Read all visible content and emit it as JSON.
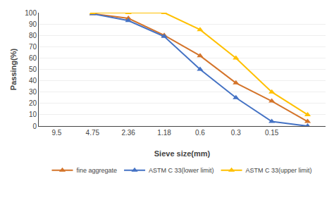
{
  "chart_data": {
    "type": "line",
    "xlabel": "Sieve size(mm)",
    "ylabel": "Passing(%)",
    "categories": [
      "9.5",
      "4.75",
      "2.36",
      "1.18",
      "0.6",
      "0.3",
      "0.15",
      null
    ],
    "series": [
      {
        "name": "fine aggregate",
        "color": "#D4742A",
        "marker": "triangle-up",
        "values": [
          null,
          99,
          95,
          80,
          62,
          38,
          22,
          4
        ]
      },
      {
        "name": "ASTM C 33(lower limit)",
        "color": "#4472C4",
        "marker": "triangle-up",
        "values": [
          null,
          99,
          93,
          79,
          50,
          25,
          4,
          0
        ]
      },
      {
        "name": "ASTM C 33(upper limit)",
        "color": "#FFC000",
        "marker": "triangle-up",
        "values": [
          null,
          100,
          100,
          100,
          85,
          60,
          30,
          10
        ]
      }
    ],
    "ylim": [
      0,
      100
    ],
    "yticks": [
      0,
      10,
      20,
      30,
      40,
      50,
      60,
      70,
      80,
      90,
      100
    ],
    "grid": true,
    "legend": "bottom"
  }
}
